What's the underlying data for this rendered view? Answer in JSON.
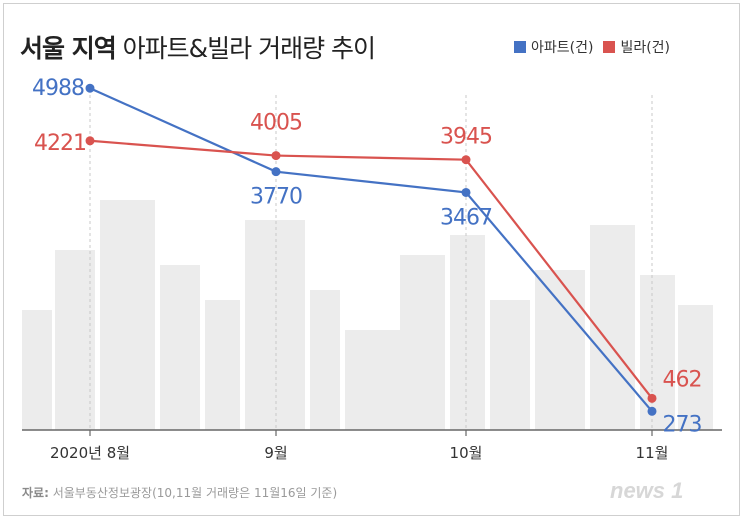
{
  "header": {
    "title_bold": "서울 지역",
    "title_rest": "아파트&빌라 거래량 추이"
  },
  "colors": {
    "apartment": "#4472c4",
    "villa": "#d9534f",
    "axis": "#666666",
    "skyline": "#ececec"
  },
  "chart_data": {
    "type": "line",
    "title": "서울 지역 아파트&빌라 거래량 추이",
    "categories": [
      "2020년 8월",
      "9월",
      "10월",
      "11월"
    ],
    "series": [
      {
        "name": "아파트(건)",
        "values": [
          4988,
          3770,
          3467,
          273
        ],
        "labels": [
          "4988",
          "3770",
          "3467",
          "273"
        ]
      },
      {
        "name": "빌라(건)",
        "values": [
          4221,
          4005,
          3945,
          462
        ],
        "labels": [
          "4221",
          "4005",
          "3945",
          "462"
        ]
      }
    ],
    "xlabel": "",
    "ylabel": "",
    "ylim": [
      0,
      5400
    ],
    "legend": "top-right",
    "grid": false
  },
  "footer": {
    "source_label": "자료:",
    "source_text": "서울부동산정보광장(10,11월 거래량은 11월16일 기준)",
    "logo": "news 1"
  }
}
